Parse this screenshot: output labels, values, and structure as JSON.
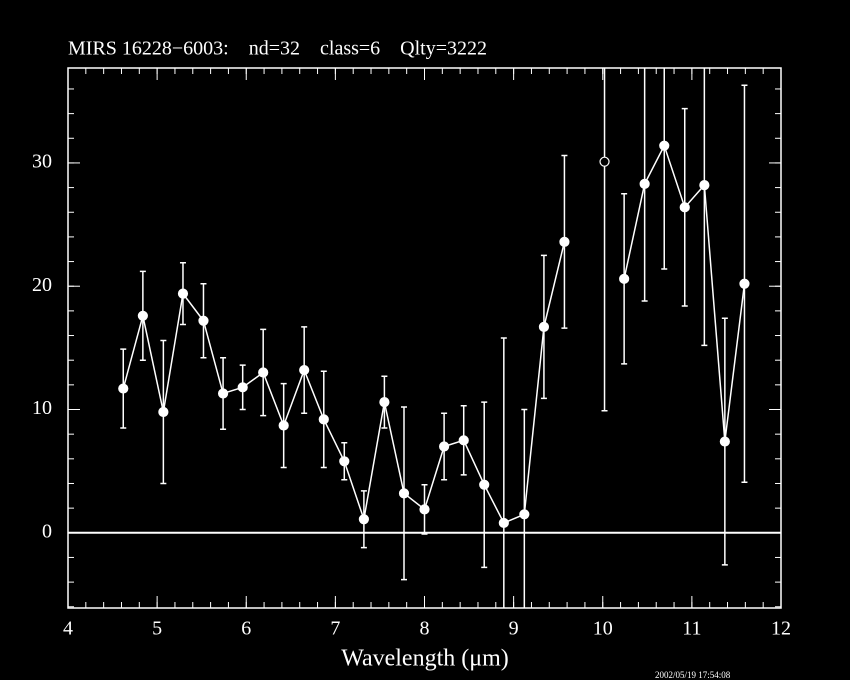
{
  "chart_data": {
    "type": "errorbar-line",
    "title": "MIRS 16228−6003:    nd=32    class=6    Qlty=3222",
    "x_label": "Wavelength (μm)",
    "footer": "2002/05/19 17:54:08",
    "x": [
      4.62,
      4.84,
      5.07,
      5.29,
      5.52,
      5.74,
      5.96,
      6.19,
      6.42,
      6.65,
      6.87,
      7.1,
      7.32,
      7.55,
      7.77,
      8.0,
      8.22,
      8.44,
      8.67,
      8.89,
      9.12,
      9.34,
      9.57,
      10.02,
      10.24,
      10.47,
      10.69,
      10.92,
      11.14,
      11.37,
      11.59
    ],
    "series": [
      {
        "color": "#ffffff",
        "marker": "filled",
        "values": [
          11.7,
          17.6,
          9.8,
          19.4,
          17.2,
          11.3,
          11.8,
          13.0,
          8.7,
          13.2,
          9.2,
          5.8,
          1.1,
          10.6,
          3.2,
          1.9,
          7.0,
          7.5,
          3.9,
          0.8,
          1.5,
          16.7,
          23.6,
          null,
          20.6,
          28.3,
          31.4,
          26.4,
          28.2,
          7.4,
          20.2
        ],
        "errors": [
          3.2,
          3.6,
          5.8,
          2.5,
          3.0,
          2.9,
          1.8,
          3.5,
          3.4,
          3.5,
          3.9,
          1.5,
          2.3,
          2.1,
          7.0,
          2.0,
          2.7,
          2.8,
          6.7,
          15.0,
          8.5,
          5.8,
          7.0,
          null,
          6.9,
          9.5,
          10.0,
          8.0,
          13.0,
          10.0,
          16.1
        ]
      },
      {
        "color": "#ffffff",
        "marker": "open",
        "values": [
          null,
          null,
          null,
          null,
          null,
          null,
          null,
          null,
          null,
          null,
          null,
          null,
          null,
          null,
          null,
          null,
          null,
          null,
          null,
          null,
          null,
          null,
          null,
          30.1,
          null,
          null,
          null,
          null,
          null,
          null,
          null
        ],
        "errors": [
          null,
          null,
          null,
          null,
          null,
          null,
          null,
          null,
          null,
          null,
          null,
          null,
          null,
          null,
          null,
          null,
          null,
          null,
          null,
          null,
          null,
          null,
          null,
          20.2,
          null,
          null,
          null,
          null,
          null,
          null,
          null
        ]
      }
    ],
    "xlim": [
      4,
      12
    ],
    "xticks": [
      4,
      5,
      6,
      7,
      8,
      9,
      10,
      11,
      12
    ],
    "ylim": [
      -6.1,
      37.7
    ],
    "yticks": [
      0,
      10,
      20,
      30
    ],
    "minor_ticks": {
      "x": 0.2,
      "y": 2
    },
    "hline": 0,
    "background": "#000000",
    "axis_color": "#ffffff"
  }
}
